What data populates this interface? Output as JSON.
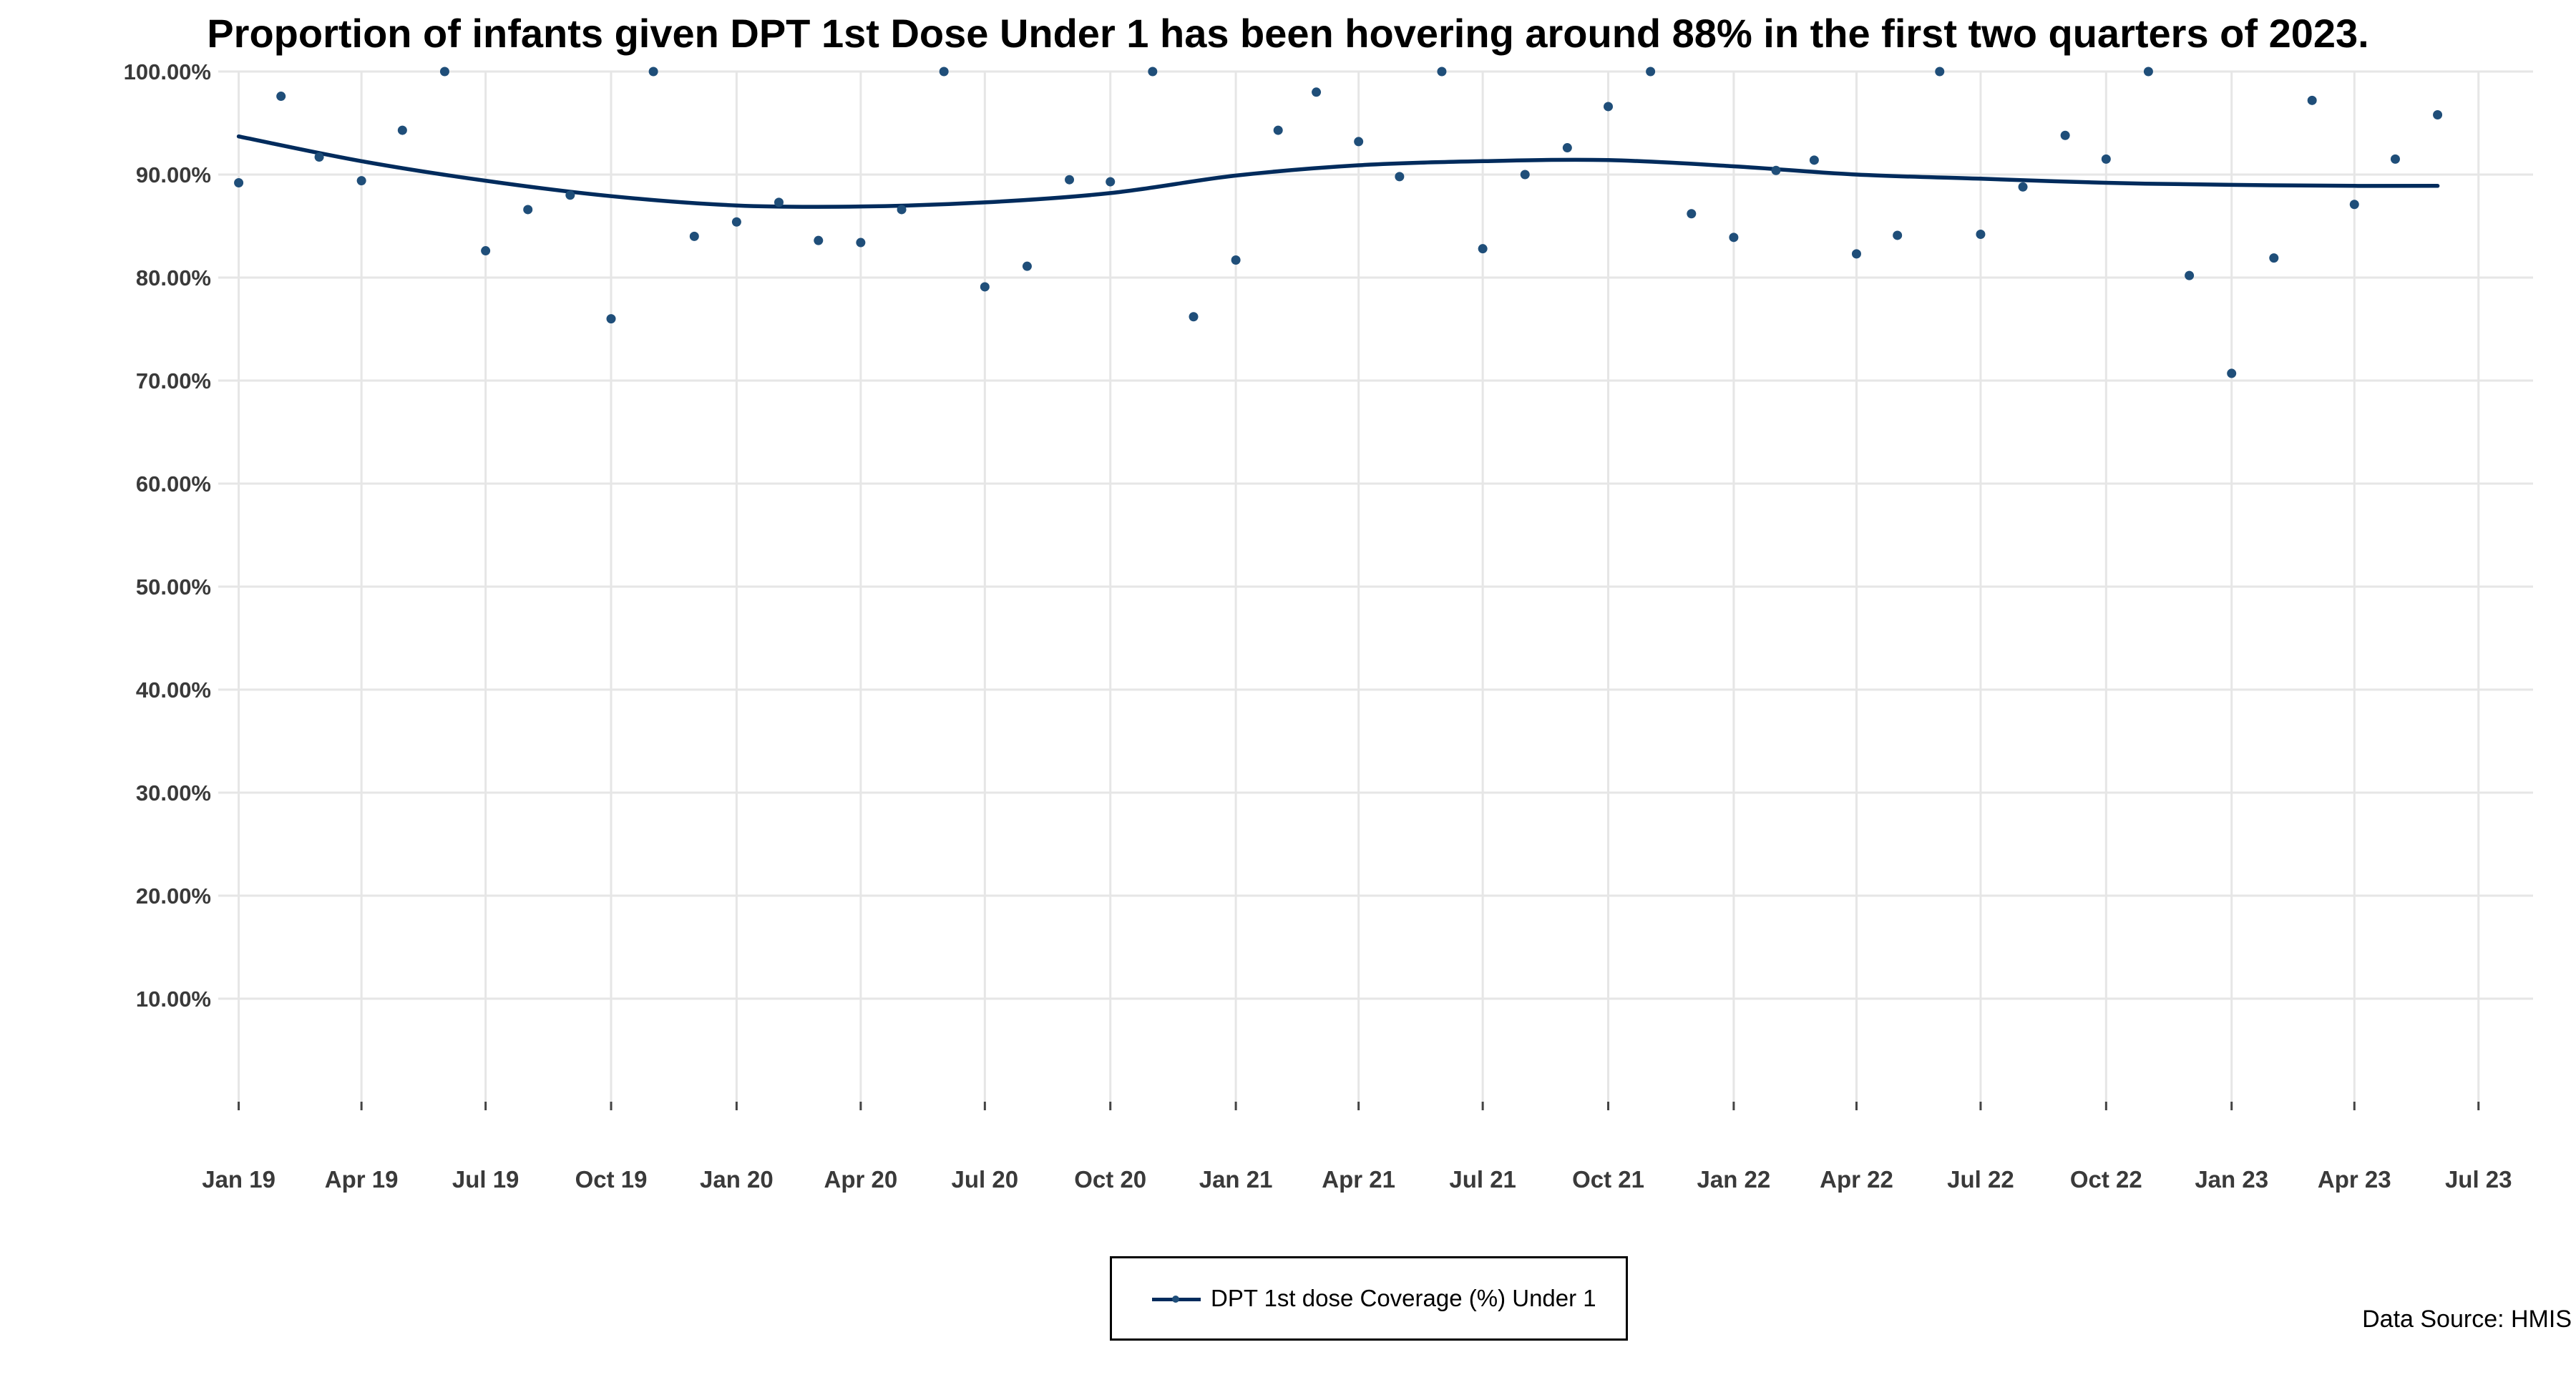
{
  "chart_data": {
    "type": "scatter",
    "title": "Proportion of infants given DPT 1st Dose Under 1 has been hovering around 88% in the first two quarters of 2023.",
    "xlabel": "",
    "ylabel": "",
    "ylim": [
      0,
      100
    ],
    "yticks": [
      10,
      20,
      30,
      40,
      50,
      60,
      70,
      80,
      90,
      100
    ],
    "ytick_labels": [
      "10.00%",
      "20.00%",
      "30.00%",
      "40.00%",
      "50.00%",
      "60.00%",
      "70.00%",
      "80.00%",
      "90.00%",
      "100.00%"
    ],
    "xlim": [
      "2018-12-17",
      "2023-08-10"
    ],
    "xticks": [
      "2019-01-01",
      "2019-04-01",
      "2019-07-01",
      "2019-10-01",
      "2020-01-01",
      "2020-04-01",
      "2020-07-01",
      "2020-10-01",
      "2021-01-01",
      "2021-04-01",
      "2021-07-01",
      "2021-10-01",
      "2022-01-01",
      "2022-04-01",
      "2022-07-01",
      "2022-10-01",
      "2023-01-01",
      "2023-04-01",
      "2023-07-01"
    ],
    "xtick_labels": [
      "Jan 19",
      "Apr 19",
      "Jul 19",
      "Oct 19",
      "Jan 20",
      "Apr 20",
      "Jul 20",
      "Oct 20",
      "Jan 21",
      "Apr 21",
      "Jul 21",
      "Oct 21",
      "Jan 22",
      "Apr 22",
      "Jul 22",
      "Oct 22",
      "Jan 23",
      "Apr 23",
      "Jul 23"
    ],
    "grid": true,
    "legend_position": "bottom",
    "series": [
      {
        "name": "DPT 1st dose Coverage (%) Under 1",
        "color": "#1f4e79",
        "x": [
          "2019-01-01",
          "2019-02-01",
          "2019-03-01",
          "2019-04-01",
          "2019-05-01",
          "2019-06-01",
          "2019-07-01",
          "2019-08-01",
          "2019-09-01",
          "2019-10-01",
          "2019-11-01",
          "2019-12-01",
          "2020-01-01",
          "2020-02-01",
          "2020-03-01",
          "2020-04-01",
          "2020-05-01",
          "2020-06-01",
          "2020-07-01",
          "2020-08-01",
          "2020-09-01",
          "2020-10-01",
          "2020-11-01",
          "2020-12-01",
          "2021-01-01",
          "2021-02-01",
          "2021-03-01",
          "2021-04-01",
          "2021-05-01",
          "2021-06-01",
          "2021-07-01",
          "2021-08-01",
          "2021-09-01",
          "2021-10-01",
          "2021-11-01",
          "2021-12-01",
          "2022-01-01",
          "2022-02-01",
          "2022-03-01",
          "2022-04-01",
          "2022-05-01",
          "2022-06-01",
          "2022-07-01",
          "2022-08-01",
          "2022-09-01",
          "2022-10-01",
          "2022-11-01",
          "2022-12-01",
          "2023-01-01",
          "2023-02-01",
          "2023-03-01",
          "2023-04-01",
          "2023-05-01",
          "2023-06-01"
        ],
        "y": [
          89.2,
          97.6,
          91.7,
          89.4,
          94.3,
          100.0,
          82.6,
          86.6,
          88.0,
          76.0,
          100.0,
          84.0,
          85.4,
          87.3,
          83.6,
          83.4,
          86.6,
          100.0,
          79.1,
          81.1,
          89.5,
          89.3,
          100.0,
          76.2,
          81.7,
          94.3,
          98.0,
          93.2,
          89.8,
          100.0,
          82.8,
          90.0,
          92.6,
          96.6,
          100.0,
          86.2,
          83.9,
          90.4,
          91.4,
          82.3,
          84.1,
          100.0,
          84.2,
          88.8,
          93.8,
          91.5,
          100.0,
          80.2,
          70.7,
          81.9,
          97.2,
          87.1,
          91.5,
          95.8
        ]
      }
    ],
    "trend_line": {
      "color": "#002b5c",
      "x": [
        "2019-01-01",
        "2019-04-01",
        "2019-07-01",
        "2019-10-01",
        "2020-01-01",
        "2020-04-01",
        "2020-07-01",
        "2020-10-01",
        "2021-01-01",
        "2021-04-01",
        "2021-07-01",
        "2021-10-01",
        "2022-01-01",
        "2022-04-01",
        "2022-07-01",
        "2022-10-01",
        "2023-01-01",
        "2023-04-01",
        "2023-06-01"
      ],
      "y": [
        93.7,
        91.3,
        89.4,
        87.9,
        87.0,
        86.9,
        87.3,
        88.2,
        89.9,
        90.9,
        91.3,
        91.4,
        90.8,
        90.0,
        89.6,
        89.2,
        89.0,
        88.9,
        88.9
      ]
    },
    "source": "Data Source: HMIS"
  }
}
